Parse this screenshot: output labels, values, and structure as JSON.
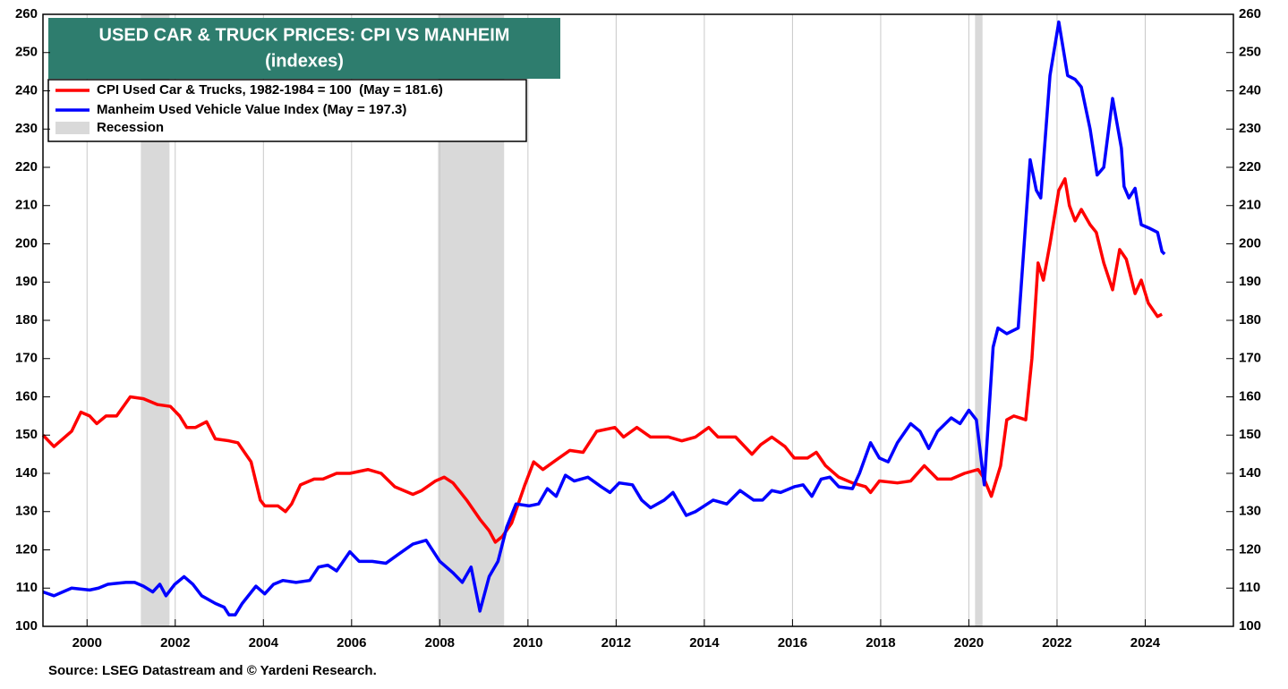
{
  "chart_data": {
    "type": "line",
    "title": "USED CAR & TRUCK PRICES: CPI VS MANHEIM",
    "subtitle": "(indexes)",
    "source": "Source: LSEG Datastream and © Yardeni Research.",
    "xlim": [
      1999,
      2026
    ],
    "xticks": [
      2000,
      2002,
      2004,
      2006,
      2008,
      2010,
      2012,
      2014,
      2016,
      2018,
      2020,
      2022,
      2024
    ],
    "ylim": [
      100,
      260
    ],
    "yticks": [
      100,
      110,
      120,
      130,
      140,
      150,
      160,
      170,
      180,
      190,
      200,
      210,
      220,
      230,
      240,
      250,
      260
    ],
    "y2lim": [
      100,
      260
    ],
    "y2ticks": [
      100,
      110,
      120,
      130,
      140,
      150,
      160,
      170,
      180,
      190,
      200,
      210,
      220,
      230,
      240,
      250,
      260
    ],
    "grid": true,
    "legend": "top-left",
    "recession": {
      "name": "Recession",
      "color": "#d9d9d9",
      "spans": [
        [
          2001.22,
          2001.87
        ],
        [
          2007.96,
          2009.46
        ],
        [
          2020.14,
          2020.31
        ]
      ]
    },
    "series": [
      {
        "name": "CPI Used Car & Trucks, 1982-1984 = 100  (May = 181.6)",
        "color": "#ff0000",
        "x": [
          1999.0,
          1999.25,
          1999.65,
          1999.86,
          2000.06,
          2000.22,
          2000.43,
          2000.67,
          2000.98,
          2001.28,
          2001.59,
          2001.89,
          2002.1,
          2002.26,
          2002.46,
          2002.71,
          2002.91,
          2003.22,
          2003.42,
          2003.72,
          2003.93,
          2004.03,
          2004.33,
          2004.5,
          2004.64,
          2004.84,
          2005.15,
          2005.35,
          2005.66,
          2005.96,
          2006.37,
          2006.67,
          2006.98,
          2007.39,
          2007.59,
          2007.9,
          2008.1,
          2008.3,
          2008.61,
          2008.91,
          2009.12,
          2009.26,
          2009.42,
          2009.63,
          2009.93,
          2010.13,
          2010.34,
          2010.64,
          2010.95,
          2011.25,
          2011.56,
          2011.97,
          2012.17,
          2012.47,
          2012.78,
          2013.19,
          2013.49,
          2013.8,
          2014.1,
          2014.31,
          2014.71,
          2015.08,
          2015.28,
          2015.53,
          2015.83,
          2016.04,
          2016.34,
          2016.54,
          2016.75,
          2017.05,
          2017.36,
          2017.66,
          2017.77,
          2017.97,
          2018.38,
          2018.68,
          2018.99,
          2019.29,
          2019.6,
          2019.9,
          2020.21,
          2020.33,
          2020.51,
          2020.72,
          2020.86,
          2021.02,
          2021.29,
          2021.43,
          2021.57,
          2021.69,
          2021.84,
          2022.04,
          2022.18,
          2022.28,
          2022.41,
          2022.55,
          2022.75,
          2022.89,
          2023.06,
          2023.26,
          2023.42,
          2023.57,
          2023.77,
          2023.91,
          2024.07,
          2024.28,
          2024.38
        ],
        "values": [
          150,
          147,
          151,
          156,
          155,
          153,
          155,
          155,
          160,
          159.5,
          158,
          157.5,
          155,
          152,
          152,
          153.5,
          149,
          148.5,
          148,
          143,
          133,
          131.5,
          131.5,
          130,
          132,
          137,
          138.5,
          138.5,
          140,
          140,
          141,
          140,
          136.5,
          134.5,
          135.5,
          138,
          139,
          137.5,
          133,
          128,
          125,
          122,
          123.5,
          127,
          137,
          143,
          141,
          143.5,
          146,
          145.5,
          151,
          152,
          149.5,
          152,
          149.5,
          149.5,
          148.5,
          149.5,
          152,
          149.5,
          149.5,
          145,
          147.5,
          149.5,
          147,
          144,
          144,
          145.5,
          142,
          139,
          137.5,
          136.5,
          135,
          138,
          137.5,
          138,
          142,
          138.5,
          138.5,
          140,
          141,
          139,
          134,
          142,
          154,
          155,
          154,
          170,
          195,
          190.5,
          200,
          214,
          217,
          210,
          206,
          209,
          205,
          203,
          195,
          188,
          198.5,
          196,
          187,
          190.5,
          184.5,
          181,
          181.6
        ]
      },
      {
        "name": "Manheim Used Vehicle Value Index (May = 197.3)",
        "color": "#0000ff",
        "x": [
          1999.0,
          1999.25,
          1999.45,
          1999.65,
          2000.06,
          2000.26,
          2000.47,
          2000.88,
          2001.08,
          2001.28,
          2001.49,
          2001.65,
          2001.79,
          2001.99,
          2002.2,
          2002.4,
          2002.6,
          2002.91,
          2003.11,
          2003.22,
          2003.36,
          2003.52,
          2003.83,
          2004.03,
          2004.23,
          2004.44,
          2004.74,
          2005.05,
          2005.25,
          2005.46,
          2005.66,
          2005.96,
          2006.17,
          2006.47,
          2006.78,
          2007.08,
          2007.39,
          2007.69,
          2008.0,
          2008.3,
          2008.51,
          2008.71,
          2008.91,
          2009.12,
          2009.32,
          2009.52,
          2009.73,
          2010.03,
          2010.24,
          2010.44,
          2010.64,
          2010.85,
          2011.05,
          2011.36,
          2011.66,
          2011.86,
          2012.07,
          2012.37,
          2012.58,
          2012.78,
          2013.09,
          2013.29,
          2013.59,
          2013.8,
          2014.2,
          2014.51,
          2014.81,
          2015.12,
          2015.32,
          2015.53,
          2015.73,
          2016.04,
          2016.24,
          2016.44,
          2016.65,
          2016.85,
          2017.05,
          2017.36,
          2017.52,
          2017.77,
          2017.97,
          2018.17,
          2018.38,
          2018.68,
          2018.89,
          2019.09,
          2019.29,
          2019.6,
          2019.8,
          2020.0,
          2020.17,
          2020.35,
          2020.55,
          2020.66,
          2020.86,
          2021.12,
          2021.39,
          2021.53,
          2021.63,
          2021.84,
          2022.04,
          2022.24,
          2022.41,
          2022.55,
          2022.75,
          2022.91,
          2023.06,
          2023.26,
          2023.46,
          2023.52,
          2023.63,
          2023.77,
          2023.91,
          2024.11,
          2024.28,
          2024.38,
          2024.44
        ],
        "values": [
          109,
          108,
          109,
          110,
          109.5,
          110,
          111,
          111.5,
          111.5,
          110.5,
          109,
          111,
          108,
          111,
          113,
          111,
          108,
          106,
          105,
          103,
          103,
          106,
          110.5,
          108.5,
          111,
          112,
          111.5,
          112,
          115.5,
          116,
          114.5,
          119.5,
          117,
          117,
          116.5,
          119,
          121.5,
          122.5,
          117,
          114,
          111.5,
          115.5,
          104,
          113,
          117,
          126,
          132,
          131.5,
          132,
          136,
          134,
          139.5,
          138,
          139,
          136.5,
          135,
          137.5,
          137,
          133,
          131,
          133,
          135,
          129,
          130,
          133,
          132,
          135.5,
          133,
          133,
          135.5,
          135,
          136.5,
          137,
          134,
          138.5,
          139,
          136.5,
          136,
          140,
          148,
          144,
          143,
          148,
          153,
          151,
          146.5,
          151,
          154.5,
          153,
          156.5,
          154,
          137,
          173,
          178,
          176.5,
          178,
          222,
          214,
          212,
          244,
          258,
          244,
          243,
          241,
          230,
          218,
          220,
          238,
          225,
          215,
          212,
          214.5,
          205,
          204,
          203,
          198,
          197.3
        ]
      }
    ]
  }
}
